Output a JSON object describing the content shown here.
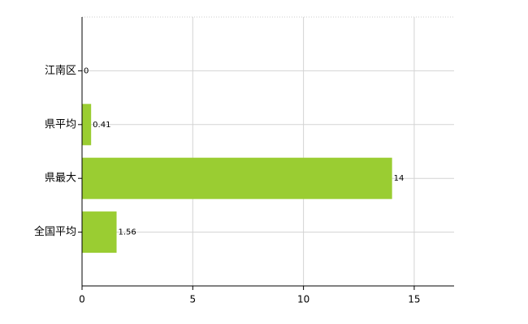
{
  "chart_data": {
    "type": "hbar",
    "categories": [
      "江南区",
      "県平均",
      "県最大",
      "全国平均"
    ],
    "values": [
      0,
      0.41,
      14,
      1.56
    ],
    "color": "#9acd32",
    "xlim": [
      0,
      16.8
    ],
    "xticks": [
      0,
      5,
      10,
      15
    ],
    "grid": true
  }
}
